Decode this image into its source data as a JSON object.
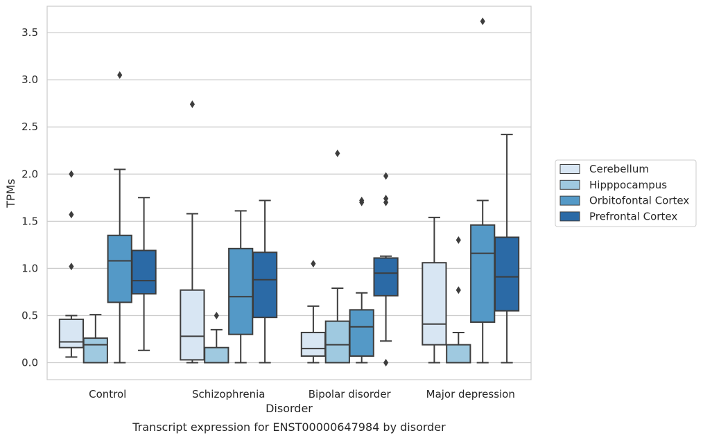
{
  "chart_data": {
    "type": "box",
    "caption": "Transcript expression for ENST00000647984 by disorder",
    "xlabel": "Disorder",
    "ylabel": "TPMs",
    "ylim": [
      -0.18,
      3.78
    ],
    "yticks": [
      "0.0",
      "0.5",
      "1.0",
      "1.5",
      "2.0",
      "2.5",
      "3.0",
      "3.5"
    ],
    "grid": "horizontal",
    "legend_position": "right",
    "categories": [
      "Control",
      "Schizophrenia",
      "Bipolar disorder",
      "Major depression"
    ],
    "series": [
      {
        "name": "Cerebellum",
        "color": "#d8e6f3",
        "boxes": [
          {
            "whislo": 0.06,
            "q1": 0.16,
            "med": 0.22,
            "q3": 0.46,
            "whishi": 0.5,
            "fliers": [
              1.02,
              1.57,
              2.0
            ]
          },
          {
            "whislo": 0.0,
            "q1": 0.03,
            "med": 0.28,
            "q3": 0.77,
            "whishi": 1.58,
            "fliers": [
              2.74
            ]
          },
          {
            "whislo": 0.0,
            "q1": 0.07,
            "med": 0.15,
            "q3": 0.32,
            "whishi": 0.6,
            "fliers": [
              1.05
            ]
          },
          {
            "whislo": 0.0,
            "q1": 0.19,
            "med": 0.41,
            "q3": 1.06,
            "whishi": 1.54,
            "fliers": []
          }
        ]
      },
      {
        "name": "Hipppocampus",
        "color": "#9fc9e0",
        "boxes": [
          {
            "whislo": 0.0,
            "q1": 0.0,
            "med": 0.19,
            "q3": 0.26,
            "whishi": 0.51,
            "fliers": []
          },
          {
            "whislo": 0.0,
            "q1": 0.0,
            "med": 0.0,
            "q3": 0.16,
            "whishi": 0.35,
            "fliers": [
              0.5
            ]
          },
          {
            "whislo": 0.0,
            "q1": 0.0,
            "med": 0.19,
            "q3": 0.44,
            "whishi": 0.79,
            "fliers": [
              2.22
            ]
          },
          {
            "whislo": 0.0,
            "q1": 0.0,
            "med": 0.0,
            "q3": 0.19,
            "whishi": 0.32,
            "fliers": [
              0.77,
              1.3
            ]
          }
        ]
      },
      {
        "name": "Orbitofontal Cortex",
        "color": "#5499c7",
        "boxes": [
          {
            "whislo": 0.0,
            "q1": 0.64,
            "med": 1.08,
            "q3": 1.35,
            "whishi": 2.05,
            "fliers": [
              3.05
            ]
          },
          {
            "whislo": 0.0,
            "q1": 0.3,
            "med": 0.7,
            "q3": 1.21,
            "whishi": 1.61,
            "fliers": []
          },
          {
            "whislo": 0.0,
            "q1": 0.07,
            "med": 0.38,
            "q3": 0.56,
            "whishi": 0.74,
            "fliers": [
              1.7,
              1.72
            ]
          },
          {
            "whislo": 0.0,
            "q1": 0.43,
            "med": 1.16,
            "q3": 1.46,
            "whishi": 1.72,
            "fliers": [
              3.62
            ]
          }
        ]
      },
      {
        "name": "Prefrontal Cortex",
        "color": "#2b6aa6",
        "boxes": [
          {
            "whislo": 0.13,
            "q1": 0.73,
            "med": 0.87,
            "q3": 1.19,
            "whishi": 1.75,
            "fliers": []
          },
          {
            "whislo": 0.0,
            "q1": 0.48,
            "med": 0.88,
            "q3": 1.17,
            "whishi": 1.72,
            "fliers": []
          },
          {
            "whislo": 0.23,
            "q1": 0.71,
            "med": 0.95,
            "q3": 1.11,
            "whishi": 1.13,
            "fliers": [
              0.0,
              1.7,
              1.74,
              1.98
            ]
          },
          {
            "whislo": 0.0,
            "q1": 0.55,
            "med": 0.91,
            "q3": 1.33,
            "whishi": 2.42,
            "fliers": []
          }
        ]
      }
    ]
  }
}
